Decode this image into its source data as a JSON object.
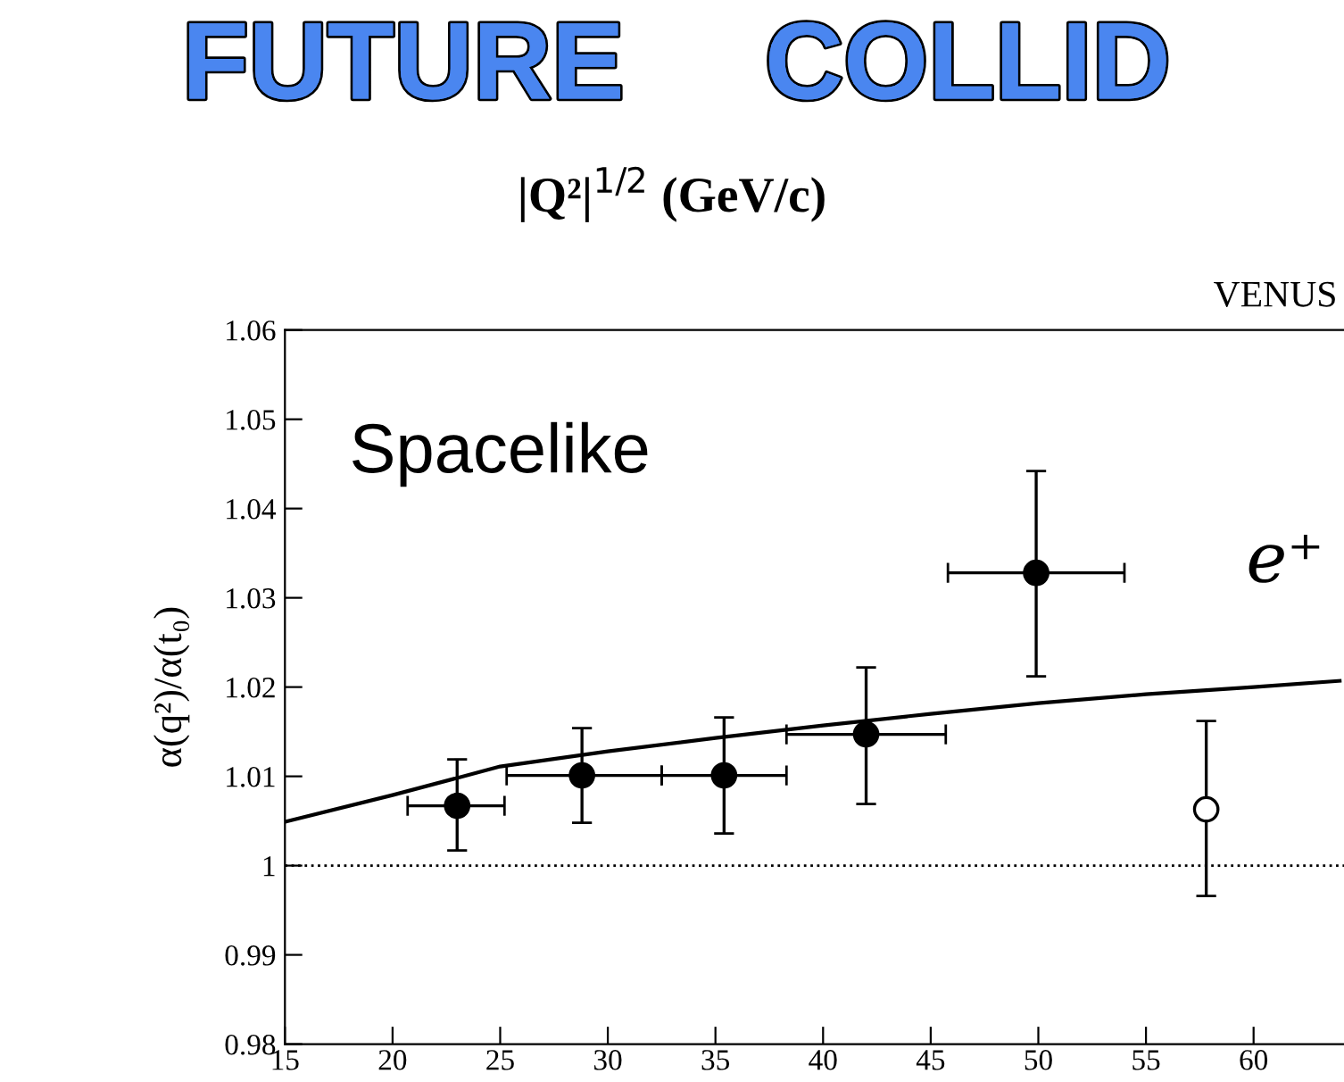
{
  "chart_data": {
    "type": "scatter",
    "ylabel": "α(q²)/α(t₀)",
    "annotations": [
      "|Q²|$^{1/2}$ (GeV/c)",
      "VENUS",
      "Spacelike",
      "e⁺",
      "FUTURE",
      "COLLID"
    ],
    "series": [
      {
        "type": "line",
        "color": "#000000",
        "marker": "none",
        "line_style": "solid",
        "x": [
          15,
          20,
          25,
          30,
          35,
          40,
          45,
          50,
          55,
          60,
          64
        ],
        "values": [
          1.0049,
          1.0079,
          1.0111,
          1.0128,
          1.0143,
          1.0157,
          1.017,
          1.0182,
          1.0192,
          1.02,
          1.0207
        ]
      },
      {
        "color": "#000000",
        "marker": "circle",
        "x": [
          23,
          28.8,
          35.4,
          42.0,
          49.9
        ],
        "values": [
          1.0067,
          1.0101,
          1.0101,
          1.0147,
          1.0328
        ],
        "errors": [
          [
            1.0017,
            1.0119
          ],
          [
            1.0048,
            1.0154
          ],
          [
            1.0036,
            1.0166
          ],
          [
            1.0069,
            1.0222
          ],
          [
            1.0212,
            1.0442
          ]
        ],
        "xerrors": [
          [
            20.7,
            25.2
          ],
          [
            25.3,
            32.5
          ],
          [
            32.5,
            38.3
          ],
          [
            38.3,
            45.7
          ],
          [
            45.8,
            54.0
          ]
        ]
      },
      {
        "color": "#ffffff",
        "marker": "circle",
        "x": [
          57.8
        ],
        "values": [
          1.0063
        ],
        "errors": [
          [
            0.9966,
            1.0162
          ]
        ]
      }
    ],
    "xlim": [
      15,
      64.2
    ],
    "ylim": [
      0.98,
      1.06
    ],
    "xticks": [
      15,
      20,
      25,
      30,
      35,
      40,
      45,
      50,
      55,
      60
    ],
    "yticks": [
      0.98,
      0.99,
      {
        "value": 1,
        "label": "1"
      },
      1.01,
      1.02,
      1.03,
      1.04,
      1.05,
      1.06
    ],
    "ref_lines": [
      {
        "axis": "y",
        "value": 1,
        "line_style": "dotted",
        "color": "#000000"
      }
    ],
    "grid": false,
    "legend": false
  }
}
